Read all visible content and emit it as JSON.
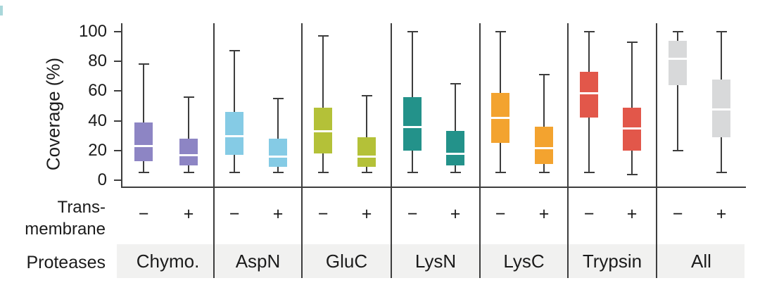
{
  "colors": {
    "axis_line": "#3d3d3d",
    "band_background": "#f1f1f0",
    "median_line": "#ffffff",
    "text": "#1b1b1b",
    "corner_fragment": "#a9d7da"
  },
  "y_axis": {
    "label": "Coverage (%)"
  },
  "rows": {
    "transmembrane_label_line1": "Trans-",
    "transmembrane_label_line2": "membrane",
    "proteases_label": "Proteases"
  },
  "chart_data": {
    "type": "boxplot",
    "title": "",
    "xlabel": "Proteases",
    "ylabel": "Coverage (%)",
    "ylim": [
      0,
      100
    ],
    "y_ticks": [
      0,
      20,
      40,
      60,
      80,
      100
    ],
    "grid": false,
    "group_row_label": "Transmembrane",
    "groups": [
      {
        "protease": "Chymo.",
        "color": "#8d85c4",
        "boxes": [
          {
            "transmembrane": "−",
            "whisker_low": 5,
            "q1": 13,
            "median": 23,
            "q3": 39,
            "whisker_high": 78
          },
          {
            "transmembrane": "+",
            "whisker_low": 5,
            "q1": 10,
            "median": 17,
            "q3": 28,
            "whisker_high": 56
          }
        ]
      },
      {
        "protease": "AspN",
        "color": "#85cbe5",
        "boxes": [
          {
            "transmembrane": "−",
            "whisker_low": 5,
            "q1": 17,
            "median": 30,
            "q3": 46,
            "whisker_high": 87
          },
          {
            "transmembrane": "+",
            "whisker_low": 5,
            "q1": 9,
            "median": 16,
            "q3": 28,
            "whisker_high": 55
          }
        ]
      },
      {
        "protease": "GluC",
        "color": "#b4c138",
        "boxes": [
          {
            "transmembrane": "−",
            "whisker_low": 5,
            "q1": 18,
            "median": 33,
            "q3": 49,
            "whisker_high": 97
          },
          {
            "transmembrane": "+",
            "whisker_low": 5,
            "q1": 9,
            "median": 16,
            "q3": 29,
            "whisker_high": 57
          }
        ]
      },
      {
        "protease": "LysN",
        "color": "#23928a",
        "boxes": [
          {
            "transmembrane": "−",
            "whisker_low": 5,
            "q1": 20,
            "median": 36,
            "q3": 56,
            "whisker_high": 100
          },
          {
            "transmembrane": "+",
            "whisker_low": 5,
            "q1": 10,
            "median": 18,
            "q3": 33,
            "whisker_high": 65
          }
        ]
      },
      {
        "protease": "LysC",
        "color": "#f3a32f",
        "boxes": [
          {
            "transmembrane": "−",
            "whisker_low": 5,
            "q1": 25,
            "median": 42,
            "q3": 59,
            "whisker_high": 100
          },
          {
            "transmembrane": "+",
            "whisker_low": 5,
            "q1": 11,
            "median": 22,
            "q3": 36,
            "whisker_high": 71
          }
        ]
      },
      {
        "protease": "Trypsin",
        "color": "#e2574a",
        "boxes": [
          {
            "transmembrane": "−",
            "whisker_low": 5,
            "q1": 42,
            "median": 59,
            "q3": 73,
            "whisker_high": 100
          },
          {
            "transmembrane": "+",
            "whisker_low": 4,
            "q1": 20,
            "median": 35,
            "q3": 49,
            "whisker_high": 93
          }
        ]
      },
      {
        "protease": "All",
        "color": "#d8d9da",
        "boxes": [
          {
            "transmembrane": "−",
            "whisker_low": 20,
            "q1": 64,
            "median": 82,
            "q3": 94,
            "whisker_high": 100
          },
          {
            "transmembrane": "+",
            "whisker_low": 5,
            "q1": 29,
            "median": 48,
            "q3": 68,
            "whisker_high": 100
          }
        ]
      }
    ]
  }
}
